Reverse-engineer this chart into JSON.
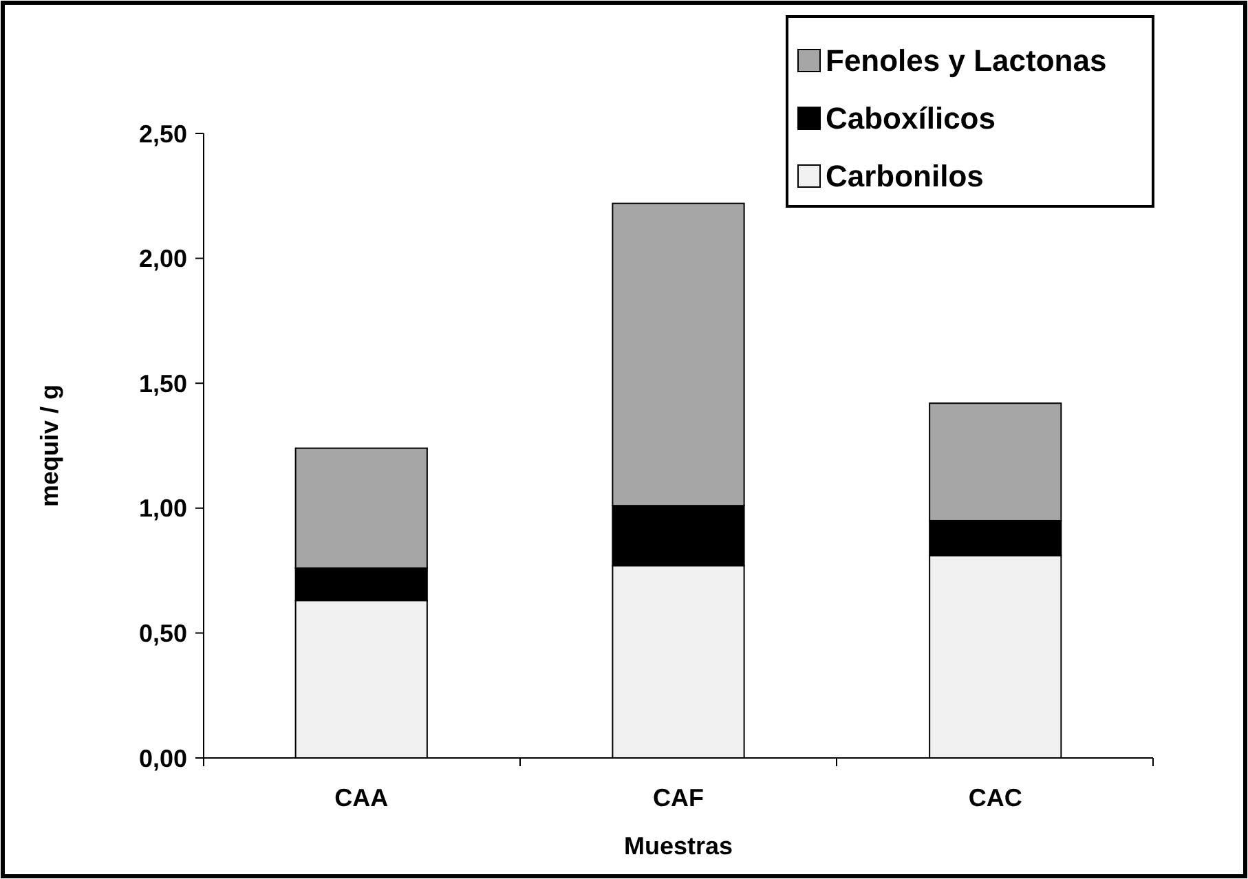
{
  "chart_data": {
    "type": "bar",
    "stacked": true,
    "xlabel": "Muestras",
    "ylabel": "mequiv / g",
    "categories": [
      "CAA",
      "CAF",
      "CAC"
    ],
    "series": [
      {
        "name": "Carbonilos",
        "color": "#f0f0f0",
        "values": [
          0.63,
          0.77,
          0.81
        ]
      },
      {
        "name": "Caboxílicos",
        "color": "#000000",
        "values": [
          0.13,
          0.24,
          0.14
        ]
      },
      {
        "name": "Fenoles y Lactonas",
        "color": "#a6a6a6",
        "values": [
          0.48,
          1.21,
          0.47
        ]
      }
    ],
    "ylim": [
      0,
      2.5
    ],
    "yticks": [
      {
        "value": 0,
        "label": "0,00"
      },
      {
        "value": 0.5,
        "label": "0,50"
      },
      {
        "value": 1,
        "label": "1,00"
      },
      {
        "value": 1.5,
        "label": "1,50"
      },
      {
        "value": 2,
        "label": "2,00"
      },
      {
        "value": 2.5,
        "label": "2,50"
      }
    ],
    "grid": false,
    "legend": "top right"
  }
}
